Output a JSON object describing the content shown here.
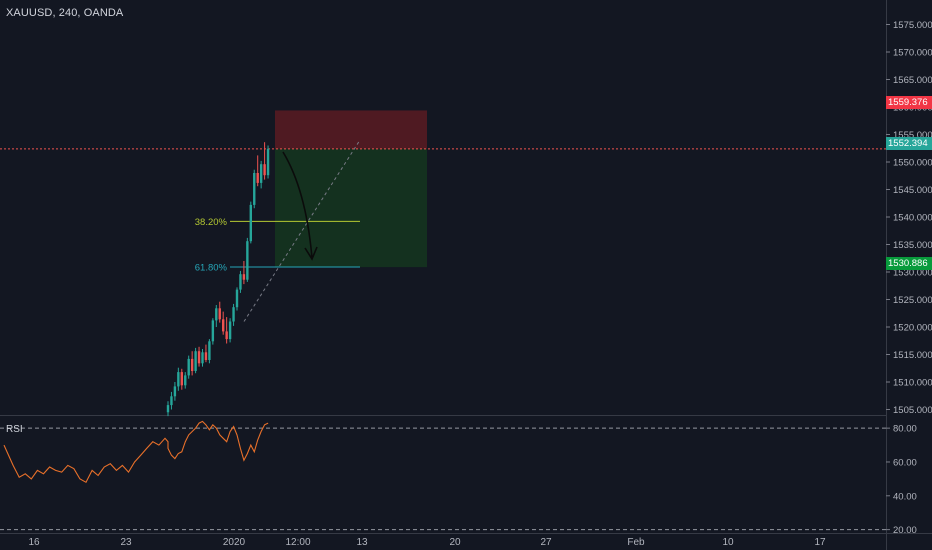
{
  "header": {
    "symbol": "XAUUSD, 240, OANDA"
  },
  "colors": {
    "background": "#131722",
    "up": "#26a69a",
    "down": "#ef5350",
    "stop_zone": "#5a1b22",
    "target_zone": "#143320",
    "fib_382": "#b4c832",
    "fib_618": "#26a6b8",
    "rsi_line": "#e8702a",
    "current_price": "#26a69a",
    "stop_tag": "#f23645",
    "target_tag": "#089b3c"
  },
  "price_axis": {
    "ticks": [
      "1575.000",
      "1570.000",
      "1565.000",
      "1560.000",
      "1555.000",
      "1550.000",
      "1545.000",
      "1540.000",
      "1535.000",
      "1530.000",
      "1525.000",
      "1520.000",
      "1515.000",
      "1510.000",
      "1505.000"
    ],
    "range": [
      1504,
      1578
    ],
    "stop_tag": "1559.376",
    "current_tag": "1552.394",
    "target_tag": "1530.886"
  },
  "rsi_axis": {
    "label": "RSI",
    "ticks": [
      "80.00",
      "60.00",
      "40.00",
      "20.00"
    ],
    "range": [
      18,
      86
    ],
    "bands": [
      80,
      20
    ]
  },
  "time_axis": {
    "labels": [
      "16",
      "23",
      "2020",
      "12:00",
      "13",
      "20",
      "27",
      "Feb",
      "10",
      "17"
    ]
  },
  "fib_levels": [
    {
      "label": "38.20%",
      "price": 1539.2
    },
    {
      "label": "61.80%",
      "price": 1530.9
    }
  ],
  "chart_data": {
    "type": "candlestick",
    "title": "XAUUSD, 240, OANDA",
    "ylim": [
      1504,
      1578
    ],
    "current_price": 1552.394,
    "candles": [
      {
        "o": 1504.5,
        "h": 1506.5,
        "l": 1503.8,
        "c": 1505.8
      },
      {
        "o": 1505.8,
        "h": 1508.2,
        "l": 1505.0,
        "c": 1507.4
      },
      {
        "o": 1507.4,
        "h": 1510.0,
        "l": 1506.6,
        "c": 1509.2
      },
      {
        "o": 1509.2,
        "h": 1512.6,
        "l": 1508.4,
        "c": 1511.8
      },
      {
        "o": 1511.8,
        "h": 1512.4,
        "l": 1508.6,
        "c": 1509.4
      },
      {
        "o": 1509.4,
        "h": 1511.8,
        "l": 1508.8,
        "c": 1511.2
      },
      {
        "o": 1511.2,
        "h": 1514.8,
        "l": 1510.6,
        "c": 1514.2
      },
      {
        "o": 1514.2,
        "h": 1515.6,
        "l": 1511.2,
        "c": 1512.0
      },
      {
        "o": 1512.0,
        "h": 1516.2,
        "l": 1511.6,
        "c": 1515.6
      },
      {
        "o": 1515.6,
        "h": 1516.4,
        "l": 1512.8,
        "c": 1513.4
      },
      {
        "o": 1513.4,
        "h": 1516.0,
        "l": 1512.8,
        "c": 1515.4
      },
      {
        "o": 1515.4,
        "h": 1516.8,
        "l": 1513.6,
        "c": 1514.0
      },
      {
        "o": 1514.0,
        "h": 1517.8,
        "l": 1513.4,
        "c": 1517.4
      },
      {
        "o": 1517.4,
        "h": 1521.6,
        "l": 1516.8,
        "c": 1521.2
      },
      {
        "o": 1521.2,
        "h": 1524.0,
        "l": 1520.0,
        "c": 1523.4
      },
      {
        "o": 1523.4,
        "h": 1524.6,
        "l": 1520.8,
        "c": 1521.4
      },
      {
        "o": 1521.4,
        "h": 1522.8,
        "l": 1518.6,
        "c": 1519.2
      },
      {
        "o": 1519.2,
        "h": 1521.8,
        "l": 1517.0,
        "c": 1517.8
      },
      {
        "o": 1517.8,
        "h": 1521.6,
        "l": 1517.2,
        "c": 1521.0
      },
      {
        "o": 1521.0,
        "h": 1524.2,
        "l": 1520.2,
        "c": 1523.6
      },
      {
        "o": 1523.6,
        "h": 1527.2,
        "l": 1523.0,
        "c": 1526.8
      },
      {
        "o": 1526.8,
        "h": 1530.2,
        "l": 1526.2,
        "c": 1529.6
      },
      {
        "o": 1529.6,
        "h": 1532.0,
        "l": 1527.8,
        "c": 1528.6
      },
      {
        "o": 1528.6,
        "h": 1536.2,
        "l": 1528.2,
        "c": 1535.6
      },
      {
        "o": 1535.6,
        "h": 1542.8,
        "l": 1535.2,
        "c": 1542.2
      },
      {
        "o": 1542.2,
        "h": 1548.6,
        "l": 1541.6,
        "c": 1548.0
      },
      {
        "o": 1548.0,
        "h": 1551.2,
        "l": 1545.6,
        "c": 1546.2
      },
      {
        "o": 1546.2,
        "h": 1550.2,
        "l": 1545.2,
        "c": 1549.6
      },
      {
        "o": 1549.6,
        "h": 1553.6,
        "l": 1546.8,
        "c": 1547.6
      },
      {
        "o": 1547.6,
        "h": 1553.0,
        "l": 1547.0,
        "c": 1552.4
      }
    ],
    "rsi": [
      {
        "x": 0,
        "y": 68
      },
      {
        "x": 1,
        "y": 64
      },
      {
        "x": 2,
        "y": 62
      },
      {
        "x": 3,
        "y": 65
      },
      {
        "x": 4,
        "y": 66
      },
      {
        "x": 5,
        "y": 72
      },
      {
        "x": 6,
        "y": 76
      },
      {
        "x": 7,
        "y": 78
      },
      {
        "x": 8,
        "y": 80
      },
      {
        "x": 9,
        "y": 83
      },
      {
        "x": 10,
        "y": 84
      },
      {
        "x": 11,
        "y": 82
      },
      {
        "x": 12,
        "y": 79
      },
      {
        "x": 13,
        "y": 82
      },
      {
        "x": 14,
        "y": 80
      },
      {
        "x": 15,
        "y": 76
      },
      {
        "x": 16,
        "y": 74
      },
      {
        "x": 17,
        "y": 72
      },
      {
        "x": 18,
        "y": 78
      },
      {
        "x": 19,
        "y": 81
      },
      {
        "x": 20,
        "y": 76
      },
      {
        "x": 21,
        "y": 68
      },
      {
        "x": 22,
        "y": 61
      },
      {
        "x": 23,
        "y": 65
      },
      {
        "x": 24,
        "y": 70
      },
      {
        "x": 25,
        "y": 66
      },
      {
        "x": 26,
        "y": 73
      },
      {
        "x": 27,
        "y": 78
      },
      {
        "x": 28,
        "y": 82
      },
      {
        "x": 29,
        "y": 83
      }
    ],
    "rsi_history": [
      {
        "x": -55,
        "y": 70
      },
      {
        "x": -52,
        "y": 58
      },
      {
        "x": -50,
        "y": 51
      },
      {
        "x": -48,
        "y": 53
      },
      {
        "x": -46,
        "y": 50
      },
      {
        "x": -44,
        "y": 55
      },
      {
        "x": -42,
        "y": 53
      },
      {
        "x": -40,
        "y": 57
      },
      {
        "x": -38,
        "y": 55
      },
      {
        "x": -36,
        "y": 54
      },
      {
        "x": -34,
        "y": 58
      },
      {
        "x": -32,
        "y": 56
      },
      {
        "x": -30,
        "y": 50
      },
      {
        "x": -28,
        "y": 48
      },
      {
        "x": -26,
        "y": 55
      },
      {
        "x": -24,
        "y": 52
      },
      {
        "x": -22,
        "y": 57
      },
      {
        "x": -20,
        "y": 59
      },
      {
        "x": -18,
        "y": 55
      },
      {
        "x": -16,
        "y": 58
      },
      {
        "x": -14,
        "y": 54
      },
      {
        "x": -12,
        "y": 60
      },
      {
        "x": -10,
        "y": 64
      },
      {
        "x": -8,
        "y": 68
      },
      {
        "x": -6,
        "y": 72
      },
      {
        "x": -4,
        "y": 70
      },
      {
        "x": -2,
        "y": 74
      },
      {
        "x": -1,
        "y": 72
      }
    ],
    "position": {
      "stop": 1559.376,
      "entry": 1552.394,
      "target": 1530.886
    }
  }
}
